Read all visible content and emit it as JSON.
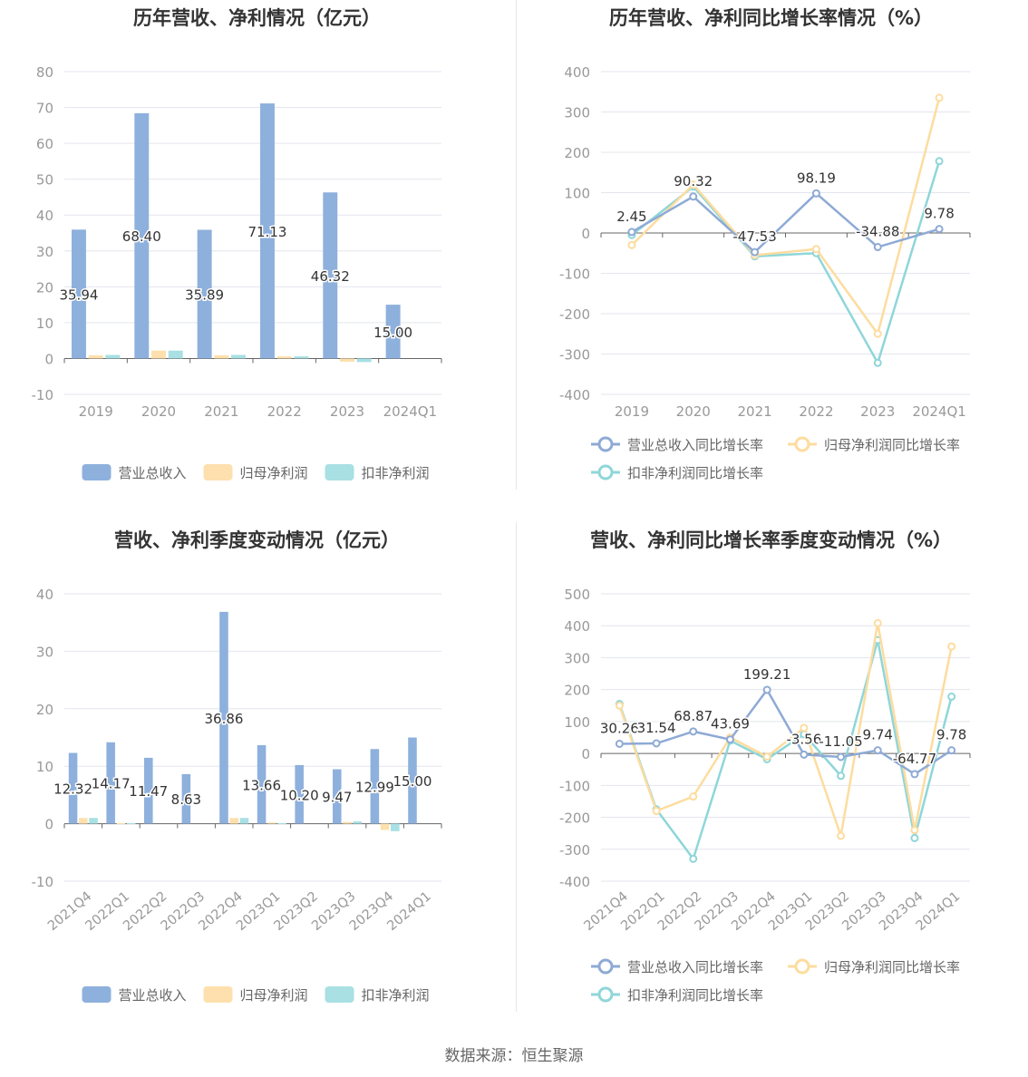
{
  "source": "数据来源：恒生聚源",
  "colors": {
    "revenue": "#8eb0dc",
    "netprofit": "#fde0ad",
    "deducted": "#a8e0e3",
    "revenue_line": "#8eaad5",
    "netprofit_line": "#fddc9f",
    "deducted_line": "#8fd6d9",
    "grid": "#e3e6ee",
    "axis": "#666666",
    "tick": "#999999"
  },
  "chart_data": [
    {
      "type": "bar",
      "title": "历年营收、净利情况（亿元）",
      "categories": [
        "2019",
        "2020",
        "2021",
        "2022",
        "2023",
        "2024Q1"
      ],
      "ylim": [
        -10,
        80
      ],
      "yticks": [
        "80",
        "70",
        "60",
        "50",
        "40",
        "30",
        "20",
        "10",
        "0",
        "-10"
      ],
      "series": [
        {
          "name": "营业总收入",
          "values": [
            35.94,
            68.4,
            35.89,
            71.13,
            46.32,
            15.0
          ]
        },
        {
          "name": "归母净利润",
          "values": [
            0.9,
            2.2,
            0.9,
            0.6,
            -0.9,
            0
          ]
        },
        {
          "name": "扣非净利润",
          "values": [
            1.0,
            2.2,
            1.0,
            0.6,
            -1.0,
            0
          ]
        }
      ],
      "data_labels": [
        "35.94",
        "68.40",
        "35.89",
        "71.13",
        "46.32",
        "15.00"
      ],
      "legend": "bottom",
      "grid": true
    },
    {
      "type": "line",
      "title": "历年营收、净利同比增长率情况（%）",
      "categories": [
        "2019",
        "2020",
        "2021",
        "2022",
        "2023",
        "2024Q1"
      ],
      "ylim": [
        -400,
        400
      ],
      "yticks": [
        "400",
        "300",
        "200",
        "100",
        "0",
        "-100",
        "-200",
        "-300",
        "-400"
      ],
      "series": [
        {
          "name": "营业总收入同比增长率",
          "values": [
            2.45,
            90.32,
            -47.53,
            98.19,
            -34.88,
            9.78
          ]
        },
        {
          "name": "归母净利润同比增长率",
          "values": [
            -30,
            120,
            -55,
            -40,
            -250,
            335
          ]
        },
        {
          "name": "扣非净利润同比增长率",
          "values": [
            -5,
            115,
            -58,
            -50,
            -322,
            178
          ]
        }
      ],
      "data_labels": [
        "2.45",
        "90.32",
        "-47.53",
        "98.19",
        "-34.88",
        "9.78"
      ],
      "legend": "bottom",
      "grid": true
    },
    {
      "type": "bar",
      "title": "营收、净利季度变动情况（亿元）",
      "categories": [
        "2021Q4",
        "2022Q1",
        "2022Q2",
        "2022Q3",
        "2022Q4",
        "2023Q1",
        "2023Q2",
        "2023Q3",
        "2023Q4",
        "2024Q1"
      ],
      "ylim": [
        -10,
        40
      ],
      "yticks": [
        "40",
        "30",
        "20",
        "10",
        "0",
        "-10"
      ],
      "series": [
        {
          "name": "营业总收入",
          "values": [
            12.32,
            14.17,
            11.47,
            8.63,
            36.86,
            13.66,
            10.2,
            9.47,
            12.99,
            15.0
          ]
        },
        {
          "name": "归母净利润",
          "values": [
            1.0,
            0.1,
            0,
            0,
            1.0,
            0.2,
            0,
            0.3,
            -1.1,
            0
          ]
        },
        {
          "name": "扣非净利润",
          "values": [
            1.0,
            0.1,
            0,
            0,
            1.0,
            0.1,
            0,
            0.4,
            -1.3,
            0
          ]
        }
      ],
      "data_labels": [
        "12.32",
        "14.17",
        "11.47",
        "8.63",
        "36.86",
        "13.66",
        "10.20",
        "9.47",
        "12.99",
        "15.00"
      ],
      "legend": "bottom",
      "grid": true
    },
    {
      "type": "line",
      "title": "营收、净利同比增长率季度变动情况（%）",
      "categories": [
        "2021Q4",
        "2022Q1",
        "2022Q2",
        "2022Q3",
        "2022Q4",
        "2023Q1",
        "2023Q2",
        "2023Q3",
        "2023Q4",
        "2024Q1"
      ],
      "ylim": [
        -400,
        500
      ],
      "yticks": [
        "500",
        "400",
        "300",
        "200",
        "100",
        "0",
        "-100",
        "-200",
        "-300",
        "-400"
      ],
      "series": [
        {
          "name": "营业总收入同比增长率",
          "values": [
            30.26,
            31.54,
            68.87,
            43.69,
            199.21,
            -3.56,
            -11.05,
            9.74,
            -64.77,
            9.78
          ]
        },
        {
          "name": "归母净利润同比增长率",
          "values": [
            150,
            -180,
            -135,
            50,
            -10,
            80,
            -258,
            408,
            -240,
            335
          ]
        },
        {
          "name": "扣非净利润同比增长率",
          "values": [
            155,
            -175,
            -330,
            40,
            -18,
            60,
            -70,
            355,
            -265,
            178
          ]
        }
      ],
      "data_labels": [
        "30.26",
        "31.54",
        "68.87",
        "43.69",
        "199.21",
        "-3.56",
        "-11.05",
        "9.74",
        "-64.77",
        "9.78"
      ],
      "legend": "bottom",
      "grid": true
    }
  ]
}
